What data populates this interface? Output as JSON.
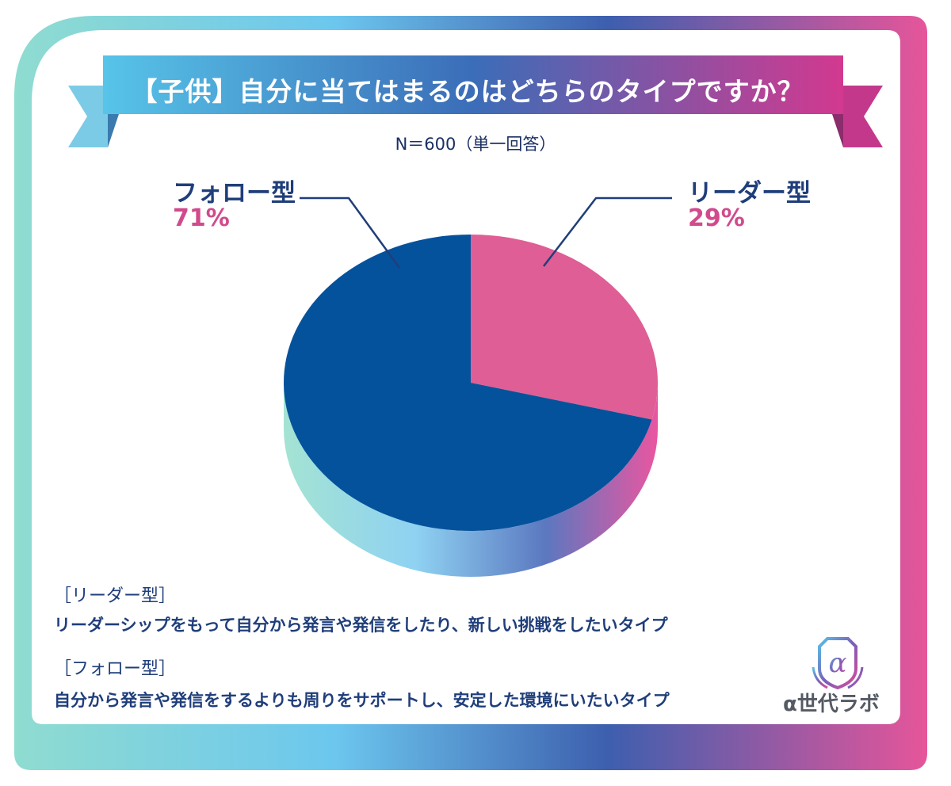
{
  "title": "【子供】自分に当てはまるのはどちらのタイプですか？",
  "subtitle": "N＝600（単一回答）",
  "colors": {
    "leader": "#df5e95",
    "follower": "#05529c",
    "label_text": "#1f3e7a",
    "percent_text": "#d14a8c"
  },
  "chart_data": {
    "type": "pie",
    "slices": [
      {
        "label": "リーダー型",
        "value": 29,
        "value_label": "29%"
      },
      {
        "label": "フォロー型",
        "value": 71,
        "value_label": "71%"
      }
    ]
  },
  "definitions": [
    {
      "heading": "［リーダー型］",
      "text": "リーダーシップをもって自分から発言や発信をしたり、新しい挑戦をしたいタイプ"
    },
    {
      "heading": "［フォロー型］",
      "text": "自分から発言や発信をするよりも周りをサポートし、安定した環境にいたいタイプ"
    }
  ],
  "logo": {
    "text": "α世代ラボ",
    "glyph": "α",
    "icon": "shield-alpha-icon"
  }
}
